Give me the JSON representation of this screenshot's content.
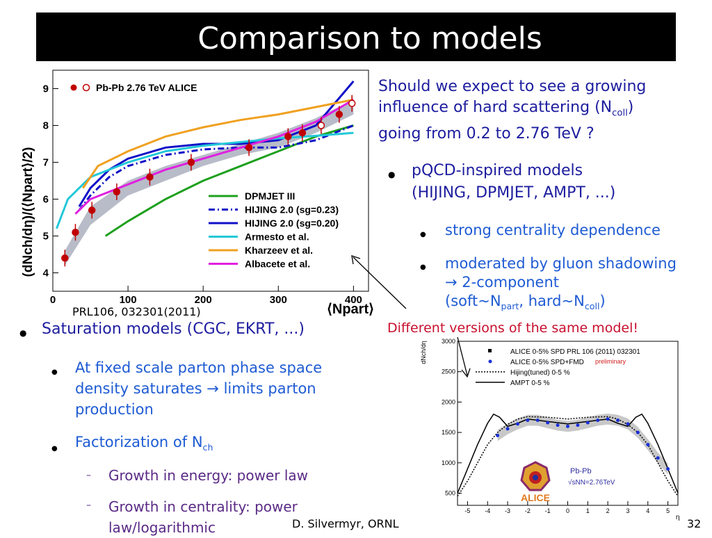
{
  "slide": {
    "title": "Comparison to models",
    "footer_author": "D. Silvermyr, ORNL",
    "page_number": "32"
  },
  "right_text": {
    "question_1": "Should we expect to see a growing",
    "question_2": "influence  of hard scattering (N",
    "question_2_sub": "coll",
    "question_2_end": ")",
    "question_3": "going from 0.2 to 2.76 TeV ?",
    "pqcd_1": "pQCD-inspired models",
    "pqcd_2": "(HIJING, DPMJET, AMPT, ...)",
    "sub1": "strong centrality dependence",
    "sub2_1": "moderated by gluon shadowing",
    "sub2_2": "→ 2-component",
    "sub2_3a": "(soft~N",
    "sub2_3b": "part",
    "sub2_3c": ", hard~N",
    "sub2_3d": "coll",
    "sub2_3e": ")",
    "note": "Different versions of the same model!"
  },
  "left_text": {
    "reference": "PRL106, 032301(2011)",
    "saturation": "Saturation models (CGC, EKRT, ...)",
    "fixed_1": "At fixed scale parton phase space",
    "fixed_2": "density saturates → limits parton",
    "fixed_3": "production",
    "factor": "Factorization of N",
    "factor_sub": "ch",
    "growth1": "Growth in energy: power law",
    "growth2_1": "Growth in centrality: power",
    "growth2_2": "law/logarithmic"
  },
  "chart_data": [
    {
      "type": "line",
      "ylabel": "(dNch/dη)/(⟨Npart⟩/2)",
      "xlabel": "⟨Npart⟩",
      "xlim": [
        0,
        420
      ],
      "ylim": [
        3.5,
        9.5
      ],
      "x_ticks": [
        0,
        100,
        200,
        300,
        400
      ],
      "y_ticks": [
        4,
        5,
        6,
        7,
        8,
        9
      ],
      "legend_position": "bottom-right",
      "data_legend": "Pb-Pb 2.76 TeV ALICE",
      "data_points": {
        "x": [
          16,
          30,
          52,
          85,
          129,
          184,
          261,
          313,
          332,
          357,
          381,
          398
        ],
        "y": [
          4.4,
          5.1,
          5.7,
          6.2,
          6.6,
          7.0,
          7.4,
          7.7,
          7.8,
          8.0,
          8.3,
          8.6
        ]
      },
      "band": {
        "x": [
          16,
          50,
          100,
          150,
          200,
          250,
          300,
          350,
          400
        ],
        "lo": [
          4.2,
          5.3,
          6.1,
          6.5,
          6.9,
          7.2,
          7.4,
          7.8,
          8.3
        ],
        "hi": [
          4.6,
          5.8,
          6.5,
          6.9,
          7.2,
          7.5,
          7.8,
          8.2,
          8.7
        ]
      },
      "series": [
        {
          "name": "DPMJET III",
          "color": "#1ea01e",
          "dash": "solid",
          "x": [
            70,
            100,
            150,
            200,
            250,
            300,
            350,
            400
          ],
          "y": [
            5.0,
            5.4,
            6.0,
            6.5,
            6.9,
            7.3,
            7.7,
            8.0
          ]
        },
        {
          "name": "HIJING 2.0 (sg=0.23)",
          "color": "#1010c8",
          "dash": "dashdot",
          "x": [
            35,
            50,
            75,
            100,
            150,
            200,
            250,
            300,
            350,
            400
          ],
          "y": [
            5.7,
            6.1,
            6.6,
            6.9,
            7.2,
            7.35,
            7.4,
            7.4,
            7.6,
            8.0
          ]
        },
        {
          "name": "HIJING 2.0 (sg=0.20)",
          "color": "#1010c8",
          "dash": "solid",
          "x": [
            35,
            50,
            75,
            100,
            150,
            200,
            250,
            300,
            350,
            400
          ],
          "y": [
            5.8,
            6.3,
            6.8,
            7.1,
            7.4,
            7.5,
            7.5,
            7.6,
            8.0,
            9.2
          ]
        },
        {
          "name": "Armesto et al.",
          "color": "#22c8d8",
          "dash": "solid",
          "x": [
            5,
            20,
            50,
            100,
            150,
            200,
            250,
            300,
            350,
            400
          ],
          "y": [
            5.2,
            6.0,
            6.6,
            7.0,
            7.3,
            7.45,
            7.55,
            7.65,
            7.72,
            7.8
          ]
        },
        {
          "name": "Kharzeev et al.",
          "color": "#f0a020",
          "dash": "solid",
          "x": [
            40,
            60,
            100,
            150,
            200,
            250,
            300,
            350,
            400
          ],
          "y": [
            6.3,
            6.9,
            7.3,
            7.7,
            7.95,
            8.15,
            8.3,
            8.5,
            8.7
          ]
        },
        {
          "name": "Albacete et al.",
          "color": "#e020e0",
          "dash": "solid",
          "x": [
            30,
            50,
            100,
            150,
            200,
            250,
            300,
            350,
            400
          ],
          "y": [
            5.6,
            6.0,
            6.4,
            6.8,
            7.1,
            7.4,
            7.7,
            8.1,
            8.7
          ]
        }
      ]
    },
    {
      "type": "line",
      "ylabel": "dNch/dη",
      "xlabel": "η",
      "xlim": [
        -5.5,
        5.5
      ],
      "ylim": [
        300,
        3000
      ],
      "x_ticks": [
        -5,
        -4,
        -3,
        -2,
        -1,
        0,
        1,
        2,
        3,
        4,
        5
      ],
      "y_ticks": [
        500,
        1000,
        1500,
        2000,
        2500,
        3000
      ],
      "legend_position": "top",
      "legend": [
        {
          "label": "ALICE 0-5% SPD PRL 106 (2011) 032301",
          "marker": "square"
        },
        {
          "label": "ALICE 0-5% SPD+FMD",
          "marker": "blue-dot",
          "tag": "preliminary"
        },
        {
          "label": "Hijing(tuned) 0-5 %",
          "marker": "dotted"
        },
        {
          "label": "AMPT 0-5 %",
          "marker": "solid"
        }
      ],
      "annotation_system": "Pb-Pb",
      "annotation_energy": "√sNN=2.76TeV",
      "logo_text": "ALICE",
      "alice_points": {
        "x": [
          -3.5,
          -3.0,
          -2.5,
          -2.0,
          -1.5,
          -1.0,
          -0.5,
          0,
          0.5,
          1.0,
          1.5,
          2.0,
          2.5,
          3.0,
          3.5,
          4.0,
          4.5,
          5.0
        ],
        "y": [
          1450,
          1560,
          1640,
          1700,
          1700,
          1660,
          1620,
          1600,
          1620,
          1660,
          1700,
          1720,
          1700,
          1640,
          1500,
          1300,
          1080,
          900
        ]
      },
      "hijing_dotted": {
        "x": [
          -5.5,
          -5,
          -4.5,
          -4,
          -3.5,
          -3,
          -2.5,
          -2,
          -1,
          0,
          1,
          2,
          2.5,
          3,
          3.5,
          4,
          4.5,
          5,
          5.5
        ],
        "y": [
          450,
          700,
          1000,
          1300,
          1500,
          1630,
          1720,
          1760,
          1750,
          1720,
          1750,
          1760,
          1720,
          1630,
          1500,
          1300,
          1000,
          700,
          450
        ]
      },
      "ampt_solid": {
        "x": [
          -5.5,
          -5,
          -4.5,
          -4,
          -3.7,
          -3.4,
          -3,
          -2.5,
          -2,
          -1,
          0,
          1,
          2,
          2.5,
          3,
          3.4,
          3.7,
          4,
          4.5,
          5,
          5.5
        ],
        "y": [
          500,
          900,
          1300,
          1650,
          1800,
          1750,
          1600,
          1650,
          1720,
          1680,
          1640,
          1680,
          1720,
          1650,
          1600,
          1750,
          1800,
          1650,
          1300,
          900,
          500
        ]
      }
    }
  ]
}
